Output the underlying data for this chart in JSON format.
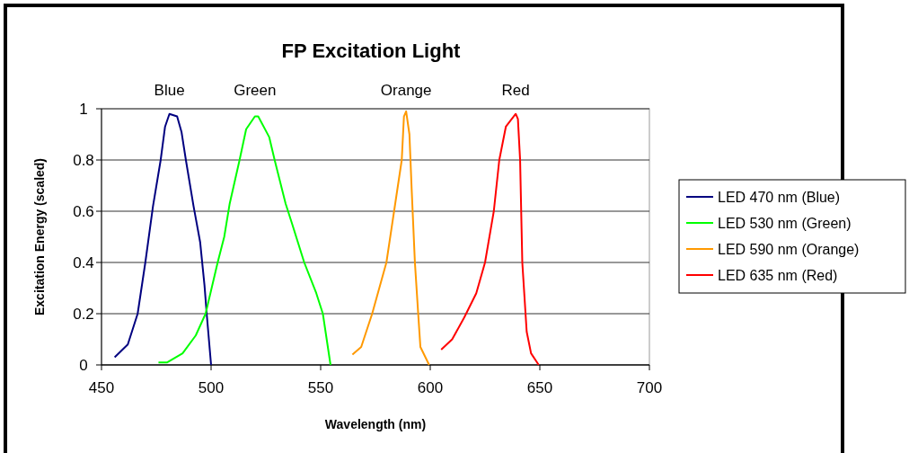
{
  "chart_data": {
    "type": "line",
    "title": "FP Excitation Light",
    "xlabel": "Wavelength (nm)",
    "ylabel": "Excitation Energy (scaled)",
    "xlim": [
      450,
      700
    ],
    "xticks": [
      450,
      500,
      550,
      600,
      650,
      700
    ],
    "ylim": [
      0,
      1
    ],
    "yticks": [
      0,
      0.2,
      0.4,
      0.6,
      0.8,
      1
    ],
    "grid": "y",
    "legend": "right",
    "marker": "none",
    "line_style": "solid",
    "annotations": [
      "Blue",
      "Green",
      "Orange",
      "Red"
    ],
    "series": [
      {
        "name": "LED 470 nm (Blue)",
        "color": "#000080",
        "x": [
          456,
          462,
          466.5,
          470,
          473.5,
          477,
          479,
          481,
          484.5,
          486.5,
          488.5,
          492,
          495,
          497,
          498,
          500
        ],
        "values": [
          0.03,
          0.08,
          0.2,
          0.4,
          0.62,
          0.8,
          0.93,
          0.98,
          0.97,
          0.91,
          0.8,
          0.62,
          0.48,
          0.31,
          0.2,
          0
        ]
      },
      {
        "name": "LED 530 nm (Green)",
        "color": "#00ff00",
        "x": [
          476,
          480,
          487,
          493,
          497.5,
          503,
          506,
          508.5,
          513,
          516,
          520,
          521.5,
          526.5,
          529,
          534,
          537,
          542.5,
          548,
          551,
          554.5
        ],
        "values": [
          0.01,
          0.01,
          0.045,
          0.115,
          0.2,
          0.4,
          0.5,
          0.63,
          0.8,
          0.92,
          0.97,
          0.97,
          0.89,
          0.8,
          0.63,
          0.55,
          0.4,
          0.28,
          0.2,
          0
        ]
      },
      {
        "name": "LED 590 nm (Orange)",
        "color": "#ff9900",
        "x": [
          564.5,
          568.5,
          573.5,
          580,
          583.5,
          587,
          588,
          589,
          590.5,
          591.5,
          593,
          594.5,
          595.5,
          599.5
        ],
        "values": [
          0.04,
          0.07,
          0.2,
          0.4,
          0.6,
          0.8,
          0.97,
          0.99,
          0.9,
          0.69,
          0.4,
          0.2,
          0.07,
          0
        ]
      },
      {
        "name": "LED 635 nm (Red)",
        "color": "#ff0000",
        "x": [
          605,
          610,
          615.5,
          621,
          625,
          629,
          631.5,
          634.5,
          639,
          640,
          641,
          642,
          644,
          646,
          649.5
        ],
        "values": [
          0.06,
          0.1,
          0.185,
          0.28,
          0.4,
          0.6,
          0.8,
          0.93,
          0.98,
          0.96,
          0.8,
          0.4,
          0.13,
          0.045,
          0
        ]
      }
    ]
  }
}
